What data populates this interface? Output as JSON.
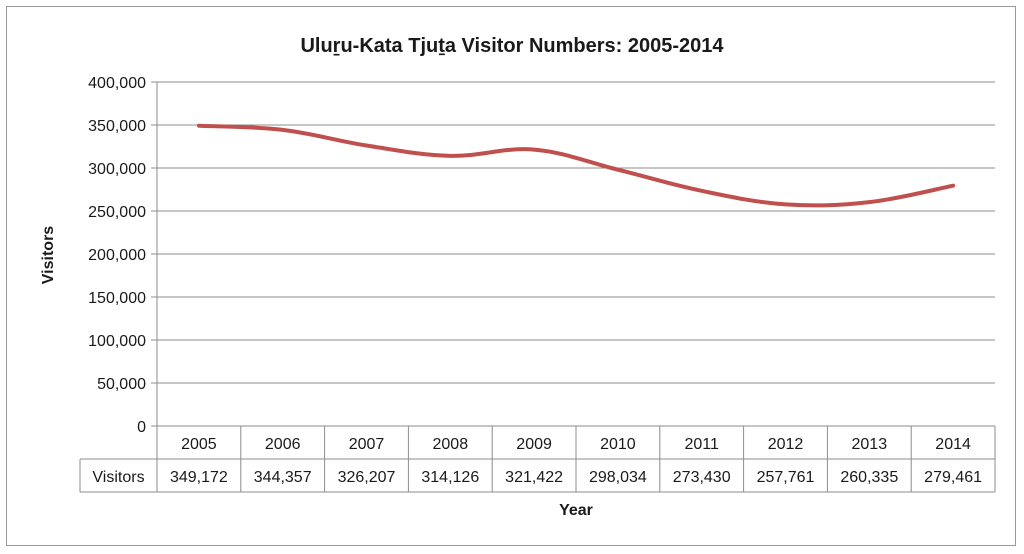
{
  "chart_data": {
    "type": "line",
    "title": "Uluṟu-Kata Tjuṯa Visitor Numbers: 2005-2014",
    "xlabel": "Year",
    "ylabel": "Visitors",
    "ylim": [
      0,
      400000
    ],
    "ytick_values": [
      0,
      50000,
      100000,
      150000,
      200000,
      250000,
      300000,
      350000,
      400000
    ],
    "ytick_labels": [
      "0",
      "50,000",
      "100,000",
      "150,000",
      "200,000",
      "250,000",
      "300,000",
      "350,000",
      "400,000"
    ],
    "grid": true,
    "categories": [
      "2005",
      "2006",
      "2007",
      "2008",
      "2009",
      "2010",
      "2011",
      "2012",
      "2013",
      "2014"
    ],
    "series": [
      {
        "name": "Visitors",
        "color": "#c0504d",
        "values": [
          349172,
          344357,
          326207,
          314126,
          321422,
          298034,
          273430,
          257761,
          260335,
          279461
        ],
        "value_labels": [
          "349,172",
          "344,357",
          "326,207",
          "314,126",
          "321,422",
          "298,034",
          "273,430",
          "257,761",
          "260,335",
          "279,461"
        ]
      }
    ],
    "data_table": true
  }
}
